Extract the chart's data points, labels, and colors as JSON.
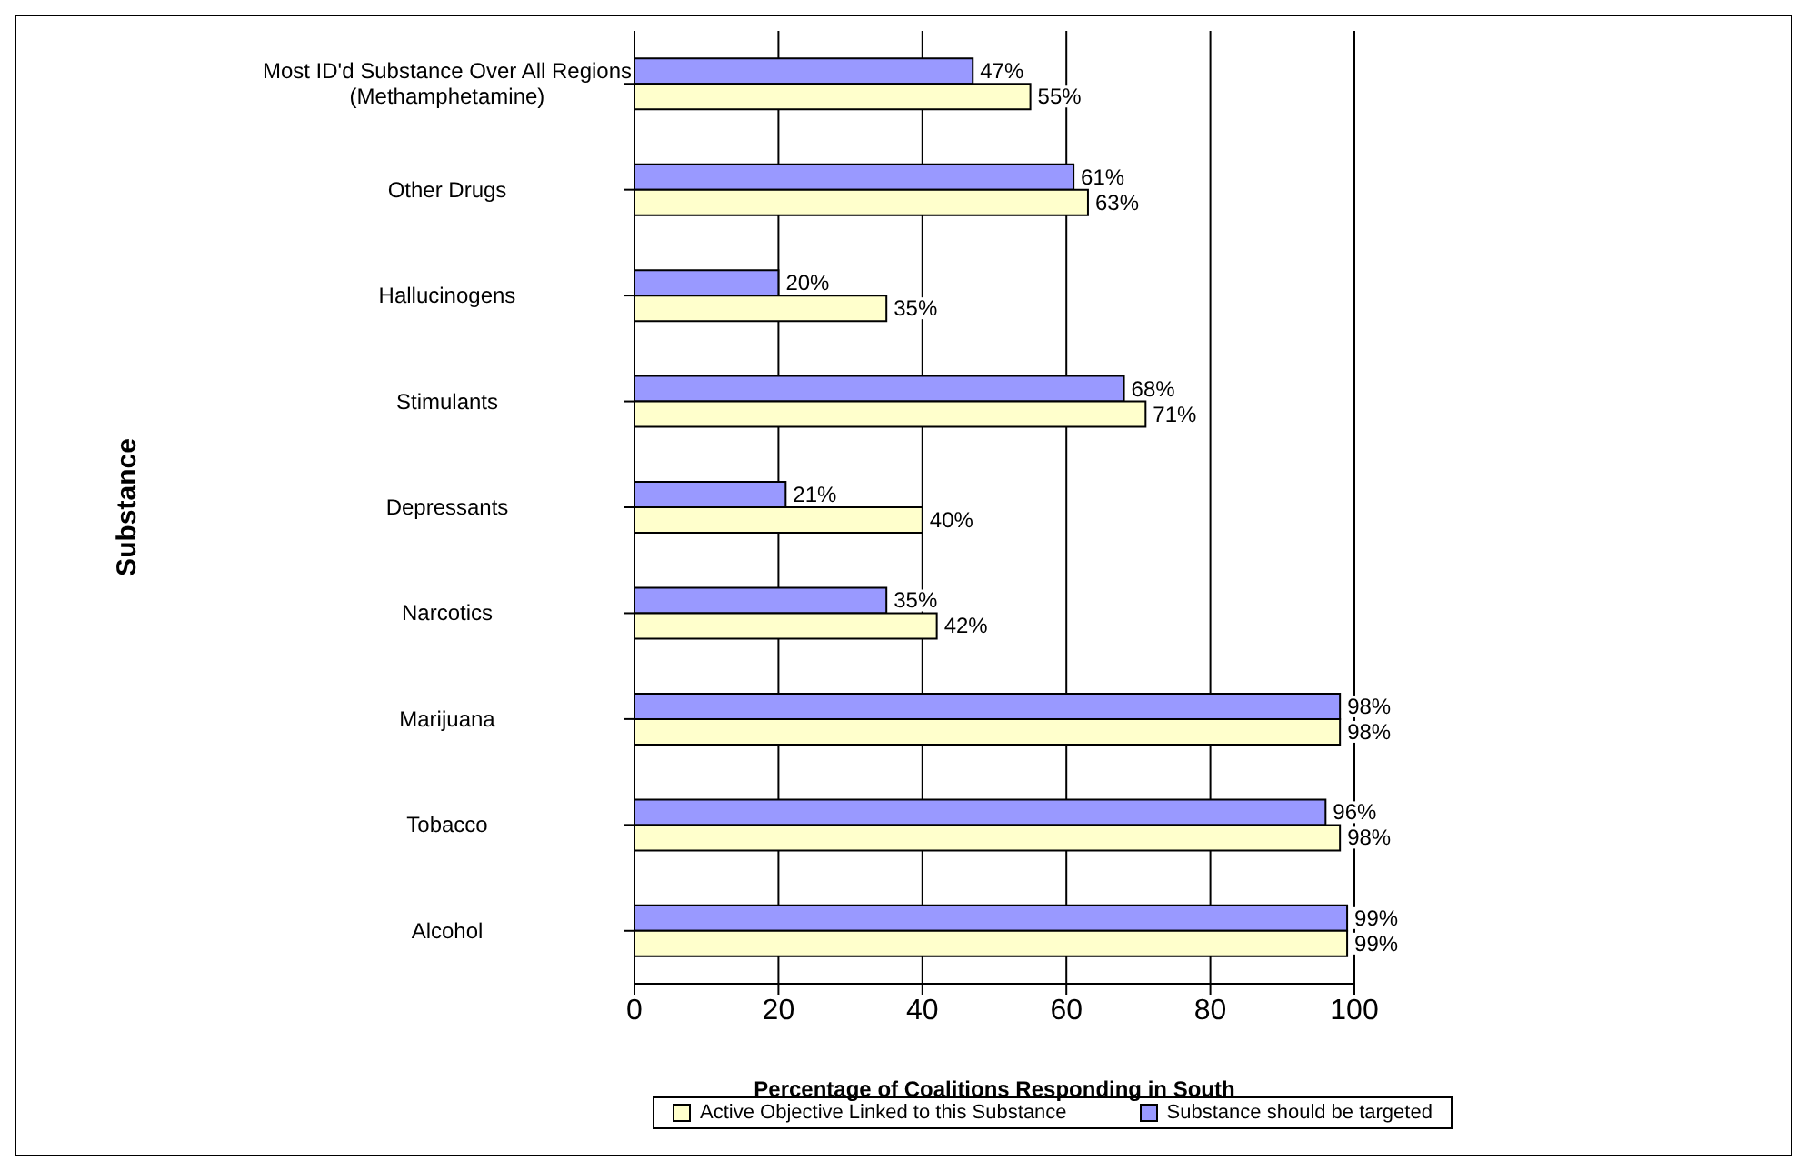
{
  "chart_data": {
    "type": "bar",
    "orientation": "horizontal",
    "ylabel": "Substance",
    "xlabel": "Percentage of Coalitions Responding in South",
    "categories": [
      "Most ID'd Substance Over All Regions\n(Methamphetamine)",
      "Other Drugs",
      "Hallucinogens",
      "Stimulants",
      "Depressants",
      "Narcotics",
      "Marijuana",
      "Tobacco",
      "Alcohol"
    ],
    "series": [
      {
        "name": "Substance should be targeted",
        "color": "#9999ff",
        "values": [
          47,
          61,
          20,
          68,
          21,
          35,
          98,
          96,
          99
        ],
        "value_labels": [
          "47%",
          "61%",
          "20%",
          "68%",
          "21%",
          "35%",
          "98%",
          "96%",
          "99%"
        ]
      },
      {
        "name": "Active Objective Linked to this Substance",
        "color": "#ffffcc",
        "values": [
          55,
          63,
          35,
          71,
          40,
          42,
          98,
          98,
          99
        ],
        "value_labels": [
          "55%",
          "63%",
          "35%",
          "71%",
          "40%",
          "42%",
          "98%",
          "98%",
          "99%"
        ]
      }
    ],
    "xlim": [
      0,
      100
    ],
    "xticks": [
      0,
      20,
      40,
      60,
      80,
      100
    ],
    "grid": "x",
    "legend": "bottom"
  }
}
